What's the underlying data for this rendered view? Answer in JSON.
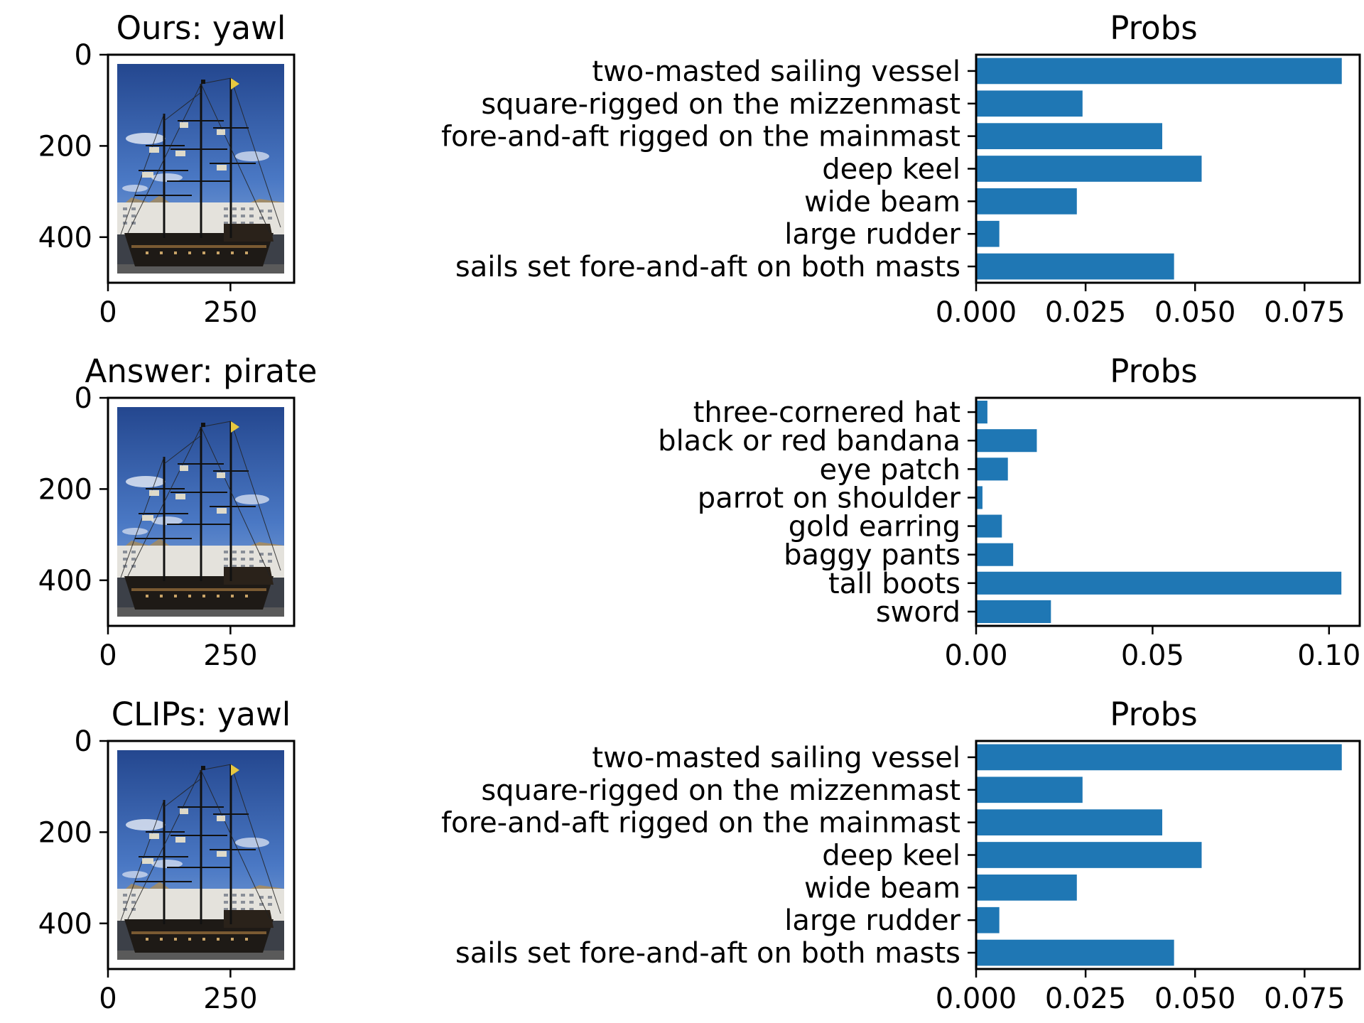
{
  "colors": {
    "bar": "#1f77b4",
    "axis": "#000000",
    "background": "#ffffff"
  },
  "chart_data": [
    {
      "type": "image",
      "title": "Ours: yawl",
      "content": "photo of a three-masted sailing ship at a harbor",
      "x_ticks": [
        "0",
        "250"
      ],
      "y_ticks": [
        "0",
        "200",
        "400"
      ],
      "xlim": [
        0,
        380
      ],
      "ylim": [
        500,
        0
      ]
    },
    {
      "type": "bar",
      "orientation": "horizontal",
      "title": "Probs",
      "categories": [
        "two-masted sailing vessel",
        "square-rigged on the mizzenmast",
        "fore-and-aft rigged on the mainmast",
        "deep keel",
        "wide beam",
        "large rudder",
        "sails set fore-and-aft on both masts"
      ],
      "values": [
        0.0835,
        0.0243,
        0.0425,
        0.0515,
        0.023,
        0.0053,
        0.0452
      ],
      "xlim": [
        0,
        0.0876
      ],
      "x_ticks": [
        0.0,
        0.025,
        0.05,
        0.075
      ],
      "x_tick_labels": [
        "0.000",
        "0.025",
        "0.050",
        "0.075"
      ]
    },
    {
      "type": "image",
      "title": "Answer: pirate",
      "content": "photo of a three-masted sailing ship at a harbor",
      "x_ticks": [
        "0",
        "250"
      ],
      "y_ticks": [
        "0",
        "200",
        "400"
      ],
      "xlim": [
        0,
        380
      ],
      "ylim": [
        500,
        0
      ]
    },
    {
      "type": "bar",
      "orientation": "horizontal",
      "title": "Probs",
      "categories": [
        "three-cornered hat",
        "black or red bandana",
        "eye patch",
        "parrot on shoulder",
        "gold earring",
        "baggy pants",
        "tall boots",
        "sword"
      ],
      "values": [
        0.0032,
        0.0172,
        0.009,
        0.0018,
        0.0073,
        0.0105,
        0.1035,
        0.0212
      ],
      "xlim": [
        0,
        0.1087
      ],
      "x_ticks": [
        0.0,
        0.05,
        0.1
      ],
      "x_tick_labels": [
        "0.00",
        "0.05",
        "0.10"
      ]
    },
    {
      "type": "image",
      "title": "CLIPs: yawl",
      "content": "photo of a three-masted sailing ship at a harbor",
      "x_ticks": [
        "0",
        "250"
      ],
      "y_ticks": [
        "0",
        "200",
        "400"
      ],
      "xlim": [
        0,
        380
      ],
      "ylim": [
        500,
        0
      ]
    },
    {
      "type": "bar",
      "orientation": "horizontal",
      "title": "Probs",
      "categories": [
        "two-masted sailing vessel",
        "square-rigged on the mizzenmast",
        "fore-and-aft rigged on the mainmast",
        "deep keel",
        "wide beam",
        "large rudder",
        "sails set fore-and-aft on both masts"
      ],
      "values": [
        0.0835,
        0.0243,
        0.0425,
        0.0515,
        0.023,
        0.0053,
        0.0452
      ],
      "xlim": [
        0,
        0.0876
      ],
      "x_ticks": [
        0.0,
        0.025,
        0.05,
        0.075
      ],
      "x_tick_labels": [
        "0.000",
        "0.025",
        "0.050",
        "0.075"
      ]
    }
  ]
}
